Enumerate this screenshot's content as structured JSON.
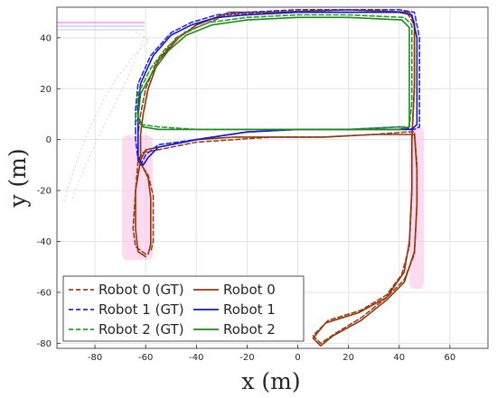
{
  "chart_data": {
    "type": "line",
    "title": "",
    "xlabel": "x (m)",
    "ylabel": "y (m)",
    "xlim": [
      -95,
      75
    ],
    "ylim": [
      -82,
      52
    ],
    "xticks": [
      -80,
      -60,
      -40,
      -20,
      0,
      20,
      40,
      60
    ],
    "yticks": [
      -80,
      -60,
      -40,
      -20,
      0,
      20,
      40
    ],
    "grid": true,
    "legend_position": "bottom-left",
    "legend_columns": 2,
    "series": [
      {
        "name": "Robot 0 (GT)",
        "color": "#a0401a",
        "dash": "dashed",
        "points": [
          [
            -60,
            -45
          ],
          [
            -64,
            -42
          ],
          [
            -65,
            -35
          ],
          [
            -64,
            -20
          ],
          [
            -63,
            -8
          ],
          [
            -61,
            -5
          ],
          [
            -55,
            -4
          ],
          [
            -40,
            -1
          ],
          [
            -25,
            0
          ],
          [
            -10,
            1
          ],
          [
            10,
            1
          ],
          [
            30,
            2
          ],
          [
            43,
            3
          ],
          [
            46,
            3
          ],
          [
            47,
            -10
          ],
          [
            47,
            -25
          ],
          [
            46,
            -45
          ],
          [
            42,
            -55
          ],
          [
            35,
            -62
          ],
          [
            25,
            -70
          ],
          [
            15,
            -76
          ],
          [
            9,
            -80
          ],
          [
            6,
            -77
          ],
          [
            12,
            -71
          ],
          [
            25,
            -67
          ],
          [
            35,
            -61
          ],
          [
            41,
            -53
          ],
          [
            44,
            -42
          ],
          [
            45,
            -20
          ],
          [
            45,
            0
          ],
          [
            46,
            20
          ],
          [
            46,
            45
          ],
          [
            43,
            50
          ],
          [
            20,
            50
          ],
          [
            -10,
            50
          ],
          [
            -28,
            49
          ],
          [
            -40,
            44
          ],
          [
            -48,
            40
          ],
          [
            -56,
            30
          ],
          [
            -60,
            20
          ],
          [
            -62,
            10
          ],
          [
            -63,
            2
          ],
          [
            -63,
            -8
          ],
          [
            -59,
            -14
          ],
          [
            -57,
            -22
          ],
          [
            -57,
            -32
          ],
          [
            -57,
            -40
          ],
          [
            -58,
            -44
          ]
        ]
      },
      {
        "name": "Robot 0",
        "color": "#8b3a0f",
        "dash": "solid",
        "points": [
          [
            -60,
            -46
          ],
          [
            -63,
            -44
          ],
          [
            -64,
            -35
          ],
          [
            -64,
            -20
          ],
          [
            -62,
            -8
          ],
          [
            -60,
            -4
          ],
          [
            -55,
            -3
          ],
          [
            -40,
            0
          ],
          [
            -25,
            1
          ],
          [
            -10,
            1
          ],
          [
            10,
            1
          ],
          [
            30,
            2
          ],
          [
            42,
            2
          ],
          [
            46,
            2
          ],
          [
            47,
            -12
          ],
          [
            47,
            -26
          ],
          [
            46,
            -44
          ],
          [
            42,
            -56
          ],
          [
            35,
            -63
          ],
          [
            25,
            -71
          ],
          [
            14,
            -77
          ],
          [
            9,
            -81
          ],
          [
            6,
            -78
          ],
          [
            11,
            -72
          ],
          [
            24,
            -68
          ],
          [
            35,
            -62
          ],
          [
            42,
            -52
          ],
          [
            44,
            -40
          ],
          [
            45,
            -20
          ],
          [
            45,
            0
          ],
          [
            46,
            22
          ],
          [
            46,
            46
          ],
          [
            44,
            50
          ],
          [
            20,
            51
          ],
          [
            -10,
            50
          ],
          [
            -27,
            50
          ],
          [
            -40,
            45
          ],
          [
            -47,
            40
          ],
          [
            -55,
            31
          ],
          [
            -59,
            20
          ],
          [
            -61,
            10
          ],
          [
            -62,
            2
          ],
          [
            -62,
            -9
          ],
          [
            -59,
            -15
          ],
          [
            -58,
            -23
          ],
          [
            -58,
            -33
          ],
          [
            -58,
            -41
          ],
          [
            -59,
            -45
          ]
        ]
      },
      {
        "name": "Robot 1 (GT)",
        "color": "#2a2ae0",
        "dash": "dashed",
        "points": [
          [
            -64,
            4
          ],
          [
            -64,
            0
          ],
          [
            -63,
            -8
          ],
          [
            -62,
            -10
          ],
          [
            -60,
            -6
          ],
          [
            -55,
            -2
          ],
          [
            -40,
            0
          ],
          [
            -20,
            3
          ],
          [
            0,
            4
          ],
          [
            20,
            4
          ],
          [
            40,
            5
          ],
          [
            46,
            4
          ],
          [
            48,
            5
          ],
          [
            48,
            20
          ],
          [
            48,
            40
          ],
          [
            46,
            50
          ],
          [
            40,
            51
          ],
          [
            20,
            51
          ],
          [
            0,
            51
          ],
          [
            -20,
            50
          ],
          [
            -32,
            49
          ],
          [
            -42,
            46
          ],
          [
            -50,
            42
          ],
          [
            -58,
            33
          ],
          [
            -63,
            22
          ],
          [
            -64,
            12
          ],
          [
            -64,
            4
          ]
        ]
      },
      {
        "name": "Robot 1",
        "color": "#1515c8",
        "dash": "solid",
        "points": [
          [
            -63,
            4
          ],
          [
            -63,
            0
          ],
          [
            -63,
            -7
          ],
          [
            -61,
            -10
          ],
          [
            -59,
            -7
          ],
          [
            -55,
            -3
          ],
          [
            -40,
            0
          ],
          [
            -20,
            3
          ],
          [
            0,
            4
          ],
          [
            20,
            4
          ],
          [
            40,
            4
          ],
          [
            45,
            4
          ],
          [
            47,
            6
          ],
          [
            47,
            20
          ],
          [
            47,
            40
          ],
          [
            45,
            49
          ],
          [
            40,
            50
          ],
          [
            20,
            50
          ],
          [
            0,
            50
          ],
          [
            -20,
            49
          ],
          [
            -32,
            48
          ],
          [
            -42,
            45
          ],
          [
            -50,
            41
          ],
          [
            -57,
            33
          ],
          [
            -62,
            22
          ],
          [
            -63,
            12
          ],
          [
            -63,
            4
          ]
        ]
      },
      {
        "name": "Robot 2 (GT)",
        "color": "#2a9a2a",
        "dash": "dashed",
        "points": [
          [
            -64,
            8
          ],
          [
            -62,
            6
          ],
          [
            -55,
            5
          ],
          [
            -40,
            4
          ],
          [
            -20,
            4
          ],
          [
            0,
            4
          ],
          [
            20,
            4
          ],
          [
            40,
            5
          ],
          [
            44,
            5
          ],
          [
            45,
            15
          ],
          [
            45,
            30
          ],
          [
            45,
            45
          ],
          [
            42,
            48
          ],
          [
            20,
            49
          ],
          [
            0,
            49
          ],
          [
            -20,
            48
          ],
          [
            -35,
            46
          ],
          [
            -45,
            42
          ],
          [
            -52,
            36
          ],
          [
            -58,
            28
          ],
          [
            -63,
            18
          ],
          [
            -64,
            8
          ]
        ]
      },
      {
        "name": "Robot 2",
        "color": "#1a8a1a",
        "dash": "solid",
        "points": [
          [
            -63,
            9
          ],
          [
            -61,
            5
          ],
          [
            -55,
            4
          ],
          [
            -40,
            4
          ],
          [
            -20,
            4
          ],
          [
            0,
            4
          ],
          [
            20,
            4
          ],
          [
            40,
            4
          ],
          [
            44,
            5
          ],
          [
            44,
            15
          ],
          [
            44,
            30
          ],
          [
            44,
            44
          ],
          [
            41,
            47
          ],
          [
            20,
            48
          ],
          [
            0,
            48
          ],
          [
            -20,
            47
          ],
          [
            -34,
            45
          ],
          [
            -44,
            41
          ],
          [
            -51,
            35
          ],
          [
            -57,
            27
          ],
          [
            -62,
            18
          ],
          [
            -63,
            9
          ]
        ]
      }
    ]
  }
}
